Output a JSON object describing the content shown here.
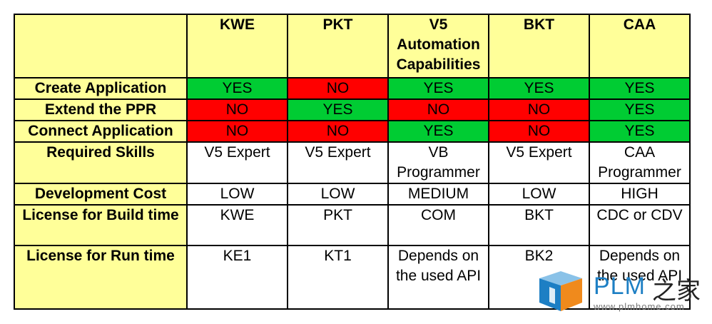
{
  "table": {
    "corner": "",
    "columns": [
      "KWE",
      "PKT",
      "V5 Automation Capabilities",
      "BKT",
      "CAA"
    ],
    "rows": [
      {
        "label": "Create Application",
        "cells": [
          "YES",
          "NO",
          "YES",
          "YES",
          "YES"
        ],
        "status": [
          "yes",
          "no",
          "yes",
          "yes",
          "yes"
        ]
      },
      {
        "label": "Extend the PPR",
        "cells": [
          "NO",
          "YES",
          "NO",
          "NO",
          "YES"
        ],
        "status": [
          "no",
          "yes",
          "no",
          "no",
          "yes"
        ]
      },
      {
        "label": "Connect Application",
        "cells": [
          "NO",
          "NO",
          "YES",
          "NO",
          "YES"
        ],
        "status": [
          "no",
          "no",
          "yes",
          "no",
          "yes"
        ]
      },
      {
        "label": "Required Skills",
        "cells": [
          "V5 Expert",
          "V5 Expert",
          "VB Programmer",
          "V5 Expert",
          "CAA Programmer"
        ],
        "status": [
          "white",
          "white",
          "white",
          "white",
          "white"
        ]
      },
      {
        "label": "Development Cost",
        "cells": [
          "LOW",
          "LOW",
          "MEDIUM",
          "LOW",
          "HIGH"
        ],
        "status": [
          "white",
          "white",
          "white",
          "white",
          "white"
        ]
      },
      {
        "label": "License for Build time",
        "cells": [
          "KWE",
          "PKT",
          "COM",
          "BKT",
          "CDC or CDV"
        ],
        "status": [
          "white",
          "white",
          "white",
          "white",
          "white"
        ]
      },
      {
        "label": "License for Run time",
        "cells": [
          "KE1",
          "KT1",
          "Depends on the used API",
          "BK2",
          "Depends on the used API"
        ],
        "status": [
          "white",
          "white",
          "white",
          "white",
          "white"
        ]
      }
    ]
  },
  "colors": {
    "header_bg": "#ffff99",
    "yes_bg": "#00cc33",
    "no_bg": "#ff0000",
    "logo_blue": "#1d7fc4"
  },
  "watermark": {
    "text": "PLM",
    "cn": "之家",
    "url": "www.plmhome.com"
  }
}
